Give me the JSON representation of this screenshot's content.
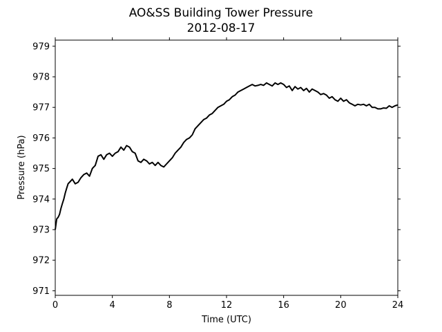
{
  "chart_data": {
    "type": "line",
    "title": "AO&SS Building Tower Pressure",
    "subtitle": "2012-08-17",
    "xlabel": "Time (UTC)",
    "ylabel": "Pressure (hPa)",
    "xlim": [
      0,
      24
    ],
    "ylim": [
      970.85,
      979.2
    ],
    "xticks": [
      0,
      4,
      8,
      12,
      16,
      20,
      24
    ],
    "yticks": [
      971,
      972,
      973,
      974,
      975,
      976,
      977,
      978,
      979
    ],
    "grid": false,
    "line_color": "#000000",
    "series": [
      {
        "x": [
          0,
          0.1,
          0.2,
          0.3,
          0.4,
          0.5,
          0.6,
          0.7,
          0.8,
          0.9,
          1.0,
          1.2,
          1.4,
          1.6,
          1.8,
          2.0,
          2.2,
          2.4,
          2.6,
          2.8,
          3.0,
          3.2,
          3.4,
          3.6,
          3.8,
          4.0,
          4.2,
          4.4,
          4.6,
          4.8,
          5.0,
          5.2,
          5.4,
          5.6,
          5.8,
          6.0,
          6.2,
          6.4,
          6.6,
          6.8,
          7.0,
          7.2,
          7.4,
          7.6,
          7.8,
          8.0,
          8.2,
          8.4,
          8.6,
          8.8,
          9.0,
          9.2,
          9.4,
          9.6,
          9.8,
          10.0,
          10.2,
          10.4,
          10.6,
          10.8,
          11.0,
          11.2,
          11.4,
          11.6,
          11.8,
          12.0,
          12.2,
          12.4,
          12.6,
          12.8,
          13.0,
          13.2,
          13.4,
          13.6,
          13.8,
          14.0,
          14.2,
          14.4,
          14.6,
          14.8,
          15.0,
          15.2,
          15.4,
          15.6,
          15.8,
          16.0,
          16.2,
          16.4,
          16.6,
          16.8,
          17.0,
          17.2,
          17.4,
          17.6,
          17.8,
          18.0,
          18.2,
          18.4,
          18.6,
          18.8,
          19.0,
          19.2,
          19.4,
          19.6,
          19.8,
          20.0,
          20.2,
          20.4,
          20.6,
          20.8,
          21.0,
          21.2,
          21.4,
          21.6,
          21.8,
          22.0,
          22.2,
          22.4,
          22.6,
          22.8,
          23.0,
          23.2,
          23.4,
          23.6,
          23.8,
          24.0
        ],
        "values": [
          973.0,
          973.35,
          973.4,
          973.5,
          973.7,
          973.85,
          974.0,
          974.2,
          974.35,
          974.5,
          974.55,
          974.65,
          974.5,
          974.55,
          974.7,
          974.8,
          974.85,
          974.75,
          975.0,
          975.1,
          975.4,
          975.45,
          975.3,
          975.45,
          975.5,
          975.4,
          975.5,
          975.55,
          975.7,
          975.6,
          975.75,
          975.7,
          975.55,
          975.5,
          975.25,
          975.2,
          975.3,
          975.25,
          975.15,
          975.2,
          975.1,
          975.2,
          975.1,
          975.05,
          975.15,
          975.25,
          975.35,
          975.5,
          975.6,
          975.7,
          975.85,
          975.95,
          976.0,
          976.1,
          976.3,
          976.4,
          976.5,
          976.6,
          976.65,
          976.75,
          976.8,
          976.9,
          977.0,
          977.05,
          977.1,
          977.2,
          977.25,
          977.35,
          977.4,
          977.5,
          977.55,
          977.6,
          977.65,
          977.7,
          977.75,
          977.7,
          977.72,
          977.75,
          977.72,
          977.8,
          977.75,
          977.7,
          977.8,
          977.75,
          977.8,
          977.75,
          977.65,
          977.7,
          977.55,
          977.68,
          977.6,
          977.65,
          977.55,
          977.62,
          977.5,
          977.6,
          977.55,
          977.5,
          977.42,
          977.45,
          977.4,
          977.3,
          977.35,
          977.25,
          977.2,
          977.3,
          977.2,
          977.25,
          977.15,
          977.1,
          977.05,
          977.1,
          977.08,
          977.1,
          977.05,
          977.1,
          977.0,
          977.0,
          976.95,
          976.95,
          976.98,
          976.97,
          977.05,
          977.0,
          977.05,
          977.08
        ]
      }
    ]
  }
}
